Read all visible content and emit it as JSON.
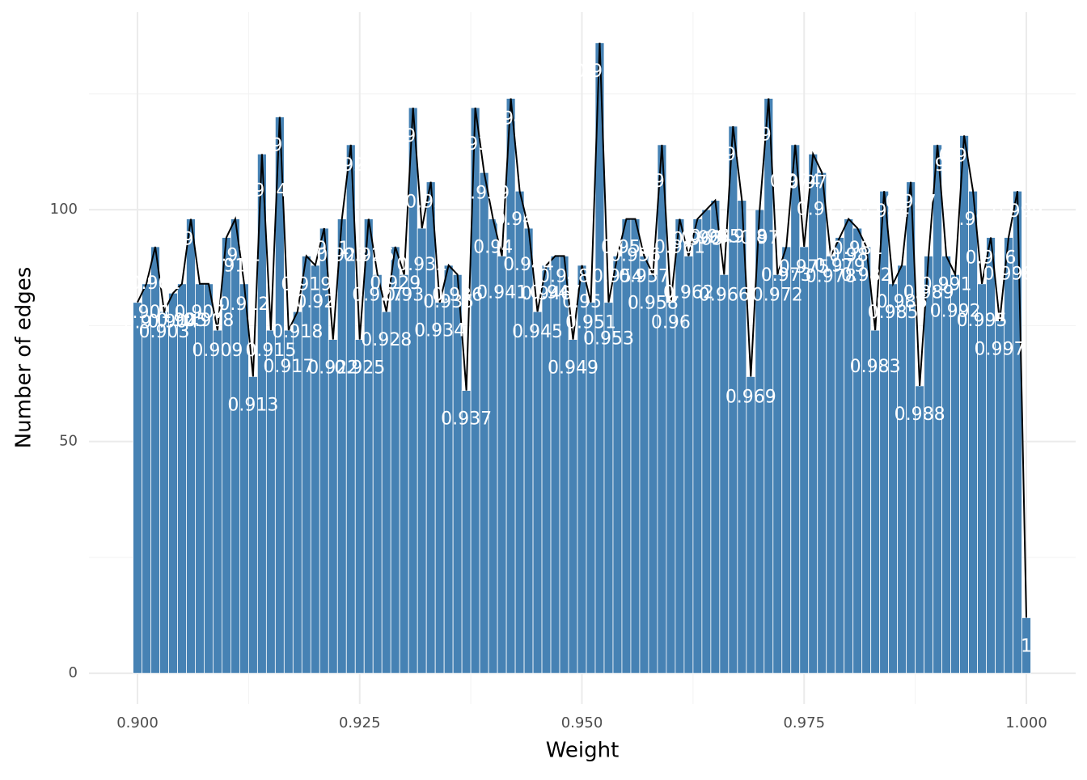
{
  "chart_data": {
    "type": "bar",
    "x_label": "Weight",
    "y_label": "Number of edges",
    "x": [
      0.9,
      0.901,
      0.902,
      0.903,
      0.904,
      0.905,
      0.906,
      0.907,
      0.908,
      0.909,
      0.91,
      0.911,
      0.912,
      0.913,
      0.914,
      0.915,
      0.916,
      0.917,
      0.918,
      0.919,
      0.92,
      0.921,
      0.922,
      0.923,
      0.924,
      0.925,
      0.926,
      0.927,
      0.928,
      0.929,
      0.93,
      0.931,
      0.932,
      0.933,
      0.934,
      0.935,
      0.936,
      0.937,
      0.938,
      0.939,
      0.94,
      0.941,
      0.942,
      0.943,
      0.944,
      0.945,
      0.946,
      0.947,
      0.948,
      0.949,
      0.95,
      0.951,
      0.952,
      0.953,
      0.954,
      0.955,
      0.956,
      0.957,
      0.958,
      0.959,
      0.96,
      0.961,
      0.962,
      0.963,
      0.964,
      0.965,
      0.966,
      0.967,
      0.968,
      0.969,
      0.97,
      0.971,
      0.972,
      0.973,
      0.974,
      0.975,
      0.976,
      0.977,
      0.978,
      0.979,
      0.98,
      0.981,
      0.982,
      0.983,
      0.984,
      0.985,
      0.986,
      0.987,
      0.988,
      0.989,
      0.99,
      0.991,
      0.992,
      0.993,
      0.994,
      0.995,
      0.996,
      0.997,
      0.998,
      0.999,
      1
    ],
    "values": [
      80,
      84,
      92,
      78,
      82,
      84,
      98,
      84,
      84,
      74,
      94,
      98,
      84,
      64,
      112,
      74,
      120,
      74,
      78,
      90,
      88,
      96,
      72,
      98,
      114,
      72,
      98,
      86,
      78,
      92,
      86,
      122,
      96,
      106,
      80,
      88,
      86,
      61,
      122,
      108,
      98,
      90,
      124,
      104,
      96,
      78,
      88,
      90,
      90,
      72,
      88,
      80,
      136,
      80,
      90,
      98,
      98,
      90,
      86,
      114,
      80,
      98,
      90,
      98,
      100,
      102,
      86,
      118,
      102,
      64,
      100,
      124,
      86,
      92,
      114,
      92,
      112,
      108,
      90,
      94,
      98,
      96,
      92,
      74,
      104,
      84,
      88,
      106,
      62,
      90,
      114,
      90,
      86,
      116,
      104,
      84,
      94,
      76,
      94,
      104,
      12
    ],
    "color": "#4682b4",
    "line_color": "#000000",
    "label_color": "#ffffff",
    "xlim": [
      0.89454,
      1.00555
    ],
    "ylim": [
      -6.6,
      142.6
    ],
    "xticks": [
      {
        "value": 0.9,
        "label": "0.900"
      },
      {
        "value": 0.925,
        "label": "0.925"
      },
      {
        "value": 0.95,
        "label": "0.950"
      },
      {
        "value": 0.975,
        "label": "0.975"
      },
      {
        "value": 1,
        "label": "1.000"
      }
    ],
    "xminor": [
      0.9125,
      0.9375,
      0.9625,
      0.9875
    ],
    "yticks": [
      0,
      50,
      100
    ],
    "yminor": [
      25,
      75,
      125
    ],
    "grid": true
  }
}
